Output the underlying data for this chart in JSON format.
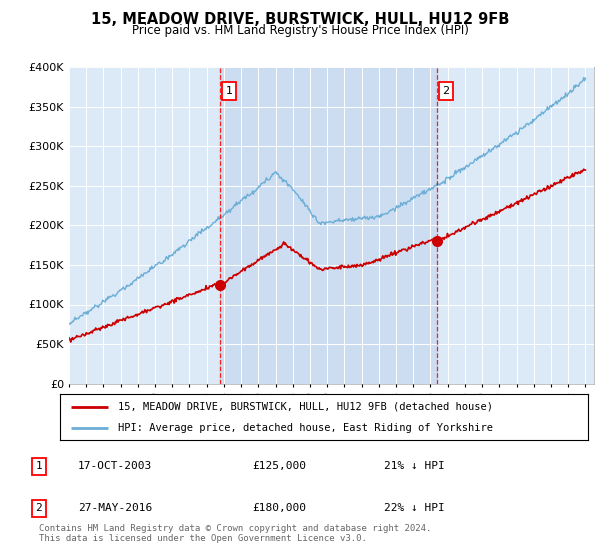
{
  "title": "15, MEADOW DRIVE, BURSTWICK, HULL, HU12 9FB",
  "subtitle": "Price paid vs. HM Land Registry's House Price Index (HPI)",
  "fig_bg": "#ffffff",
  "plot_bg": "#dce9f7",
  "hpi_color": "#6baed6",
  "price_color": "#cc0000",
  "shade_color": "#c6d9ef",
  "ylim": [
    0,
    400000
  ],
  "yticks": [
    0,
    50000,
    100000,
    150000,
    200000,
    250000,
    300000,
    350000,
    400000
  ],
  "sale1_year": 2003.8,
  "sale1_price": 125000,
  "sale2_year": 2016.4,
  "sale2_price": 180000,
  "legend_line1": "15, MEADOW DRIVE, BURSTWICK, HULL, HU12 9FB (detached house)",
  "legend_line2": "HPI: Average price, detached house, East Riding of Yorkshire",
  "table_row1_num": "1",
  "table_row1_date": "17-OCT-2003",
  "table_row1_price": "£125,000",
  "table_row1_hpi": "21% ↓ HPI",
  "table_row2_num": "2",
  "table_row2_date": "27-MAY-2016",
  "table_row2_price": "£180,000",
  "table_row2_hpi": "22% ↓ HPI",
  "footer": "Contains HM Land Registry data © Crown copyright and database right 2024.\nThis data is licensed under the Open Government Licence v3.0."
}
